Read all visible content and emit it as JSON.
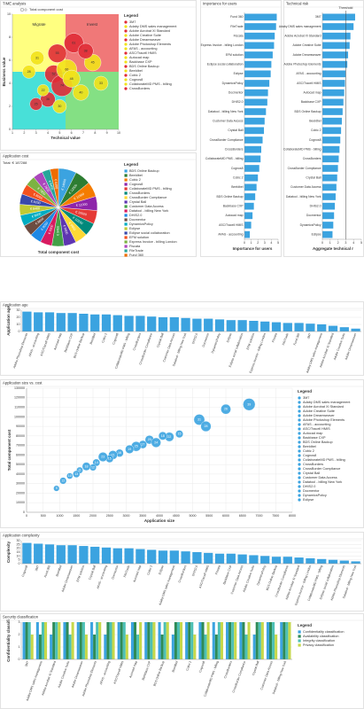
{
  "chart_data": [
    {
      "type": "bubble",
      "title": "TIME analysis",
      "size_legend": "Total component cost",
      "legend_title": "Legend",
      "xlabel": "Technical value",
      "ylabel": "Business value",
      "quadrant_colors": [
        "#ffff80",
        "#f07878",
        "#48e0d8",
        "#84e084"
      ],
      "annotations": [
        "Migrate",
        "Invest"
      ],
      "categories": [
        "3M7",
        "Adaby DMS sales management",
        "Adobe Acrobat XI Standard",
        "Adobe Creative Suite",
        "Adobe Dreamweaver",
        "Adobe Photoshop Elements",
        "AFAS - accounting",
        "ASC/Tracell HMIS",
        "Autocad map",
        "Backbase CXP",
        "BDS Online Backup",
        "Beeldbel",
        "Cobic 2",
        "Cognos8",
        "CollaborateMD PMS - billing",
        "CrossBorders"
      ],
      "x": [
        6.2,
        3.1,
        4.5,
        7.8,
        5.2,
        2.4,
        6.8,
        4.0,
        5.6,
        3.6,
        7.2,
        5.0,
        4.8,
        6.0,
        8.5,
        3.0
      ],
      "values": [
        7.5,
        6.2,
        4.8,
        5.8,
        3.8,
        5.0,
        3.2,
        2.6,
        5.2,
        3.4,
        6.8,
        2.0,
        6.6,
        4.4,
        4.0,
        2.2
      ],
      "sizes": [
        61,
        31,
        52,
        45,
        74,
        28,
        40,
        36,
        66,
        22,
        38,
        30,
        55,
        48,
        33,
        25
      ],
      "colors": [
        "#e02c36",
        "#f2e21a",
        "#e02c36",
        "#f2e21a",
        "#e02c36",
        "#f2e21a",
        "#f2e21a",
        "#e02c36",
        "#f2e21a",
        "#f2e21a",
        "#e02c36",
        "#f2e21a",
        "#e02c36",
        "#f2e21a",
        "#f2e21a",
        "#e02c36"
      ],
      "xlim": [
        1,
        10
      ],
      "xticks": [
        1,
        2,
        3,
        4,
        5,
        6,
        7,
        8,
        9,
        10
      ],
      "ylim": [
        0,
        10
      ],
      "yticks": [
        0,
        2,
        4,
        6,
        8,
        10
      ]
    },
    {
      "type": "pie",
      "title": "Application cost",
      "subtitle": "Total: € 187288",
      "xlabel": "Total component cost",
      "legend_title": "Legend",
      "categories": [
        "BDS Online Backup",
        "Beeldbel",
        "Cobic 2",
        "Cognos8",
        "CollaborateMD PMS - billing",
        "CrossBorders",
        "CrossBorder Compliance",
        "Crystal Ball",
        "Customer Data Access",
        "Datatool - billing New York",
        "DHIS2.0",
        "Docmentor",
        "DynamicsPolicy",
        "Eclipse",
        "Eclipse social collaboration",
        "EFM solution",
        "Express Invoice - billing London",
        "Fiscata",
        "FileTrade",
        "Fund 360"
      ],
      "values": [
        14000,
        12500,
        11800,
        11000,
        10500,
        10200,
        9800,
        9600,
        9400,
        9200,
        9000,
        8800,
        8600,
        8400,
        8200,
        8000,
        7800,
        7600,
        6400,
        6488
      ],
      "value_labels": [
        "€ 14000",
        "€ 12500",
        "€ 11800",
        "€ 11000",
        "€ 10500",
        "€ 10200",
        "€ 9800",
        "€ 9600",
        "€ 9400",
        "€ 9200",
        "€ 9000",
        "€ 8800",
        "€ 8600",
        "€ 8400",
        "€ 8200",
        "€ 8000",
        "€ 7800",
        "€ 7600",
        "€ 6400",
        "€ 6488"
      ],
      "colors": [
        "#3ba3e0",
        "#2e7d32",
        "#f57c00",
        "#8e24aa",
        "#e53935",
        "#00897b",
        "#fdd835",
        "#5e35b1",
        "#43a047",
        "#d81b60",
        "#1e88e5",
        "#6d4c41",
        "#00acc1",
        "#c0ca33",
        "#3949ab",
        "#f4511e",
        "#7cb342",
        "#ab47bc",
        "#26a69a",
        "#ef6c00"
      ]
    },
    {
      "type": "bar",
      "horizontal": true,
      "title": "Importance for users",
      "xlabel": "Importance for users",
      "color": "#3ba3e0",
      "categories": [
        "Fund 360",
        "FileTrade",
        "Fiscata",
        "Express Invoice - billing London",
        "EFM solution",
        "Eclipse social collaboration",
        "Eclipse",
        "DynamicsPolicy",
        "Docmentor",
        "DHIS2.0",
        "Datatool - billing New York",
        "Customer Data Access",
        "Crystal Ball",
        "CrossBorder Compliance",
        "CrossBorders",
        "CollaborateMD PMS - billing",
        "Cognos8",
        "Cobic 2",
        "Beeldbel",
        "BDS Online Backup",
        "Backbase CXP",
        "Autocad map",
        "ASC/Tracell HMIS",
        "AFAS - accounting"
      ],
      "values": [
        4.8,
        4.7,
        4.5,
        4.4,
        4.2,
        4.0,
        3.9,
        3.7,
        3.5,
        3.4,
        3.2,
        3.0,
        2.9,
        2.7,
        2.5,
        2.4,
        2.2,
        2.0,
        1.8,
        1.6,
        1.4,
        1.2,
        1.0,
        0.8
      ],
      "xlim": [
        0,
        5
      ],
      "xticks": [
        0,
        1,
        2,
        3,
        4,
        5
      ]
    },
    {
      "type": "bar",
      "horizontal": true,
      "title": "Technical risk",
      "xlabel": "Aggregate technical r",
      "color": "#3ba3e0",
      "threshold": {
        "value": 3,
        "label": "Threshold"
      },
      "categories": [
        "3M7",
        "Adaby DMS sales management",
        "Adobe Acrobat XI Standard",
        "Adobe Creative Suite",
        "Adobe Dreamweaver",
        "Adobe Photoshop Elements",
        "AFAS - accounting",
        "ASC/Tracell HMIS",
        "Autocad map",
        "Backbase CXP",
        "BDS Online Backup",
        "Beeldbel",
        "Cobic 2",
        "Cognos8",
        "CollaborateMD PMS - billing",
        "CrossBorders",
        "CrossBorder Compliance",
        "Crystal Ball",
        "Customer Data Access",
        "Datatool - billing New York",
        "DHIS2.0",
        "Docmentor",
        "DynamicsPolicy",
        "Eclipse"
      ],
      "values": [
        4.2,
        4.0,
        3.6,
        3.5,
        3.3,
        3.2,
        3.0,
        2.9,
        2.8,
        2.7,
        2.6,
        2.5,
        2.4,
        2.3,
        2.2,
        2.1,
        2.0,
        1.9,
        1.8,
        1.7,
        1.6,
        1.5,
        1.4,
        1.3
      ],
      "xlim": [
        0,
        5
      ],
      "xticks": [
        0,
        1,
        2,
        3,
        4,
        5
      ]
    },
    {
      "type": "bar",
      "title": "Application age",
      "ylabel": "Application age",
      "color": "#3ba3e0",
      "grid": true,
      "categories": [
        "Adobe Photoshop Elements",
        "AFAS - accounting",
        "ASC/Tracell HMIS",
        "Autocad map",
        "Backbase CXP",
        "BDS Online Backup",
        "Beeldbel",
        "Cobic 2",
        "Cognos8",
        "CollaborateMD PMS - billing",
        "CrossBorders",
        "CrossBorder Compliance",
        "Crystal Ball",
        "Customer Data Access",
        "Datatool - billing New York",
        "DHIS2.0",
        "Docmentor",
        "DynamicsPolicy",
        "Eclipse",
        "Eclipse social collaboration",
        "EFM solution",
        "Express Invoice - billing London",
        "Fiscata",
        "FileTrade",
        "Fund 360",
        "3M7",
        "Adaby DMS sales management",
        "Adobe Acrobat XI Standard",
        "Adobe Creative Suite",
        "Adobe Dreamweaver"
      ],
      "values": [
        28,
        27,
        27,
        26,
        26,
        25,
        24,
        24,
        23,
        22,
        22,
        21,
        20,
        20,
        19,
        18,
        18,
        17,
        16,
        16,
        15,
        14,
        13,
        12,
        12,
        11,
        10,
        8,
        6,
        4
      ],
      "ylim": [
        0,
        30
      ],
      "yticks": [
        0,
        10,
        20,
        30
      ]
    },
    {
      "type": "scatter",
      "title": "Application size vs. cost",
      "xlabel": "Application size",
      "ylabel": "Total component cost",
      "legend_title": "Legend",
      "color": "#3ba3e0",
      "grid": true,
      "categories": [
        "3M7",
        "Adaby DMS sales management",
        "Adobe Acrobat XI Standard",
        "Adobe Creative Suite",
        "Adobe Dreamweaver",
        "Adobe Photoshop Elements",
        "AFAS - accounting",
        "ASC/Tracell HMIS",
        "Autocad map",
        "Backbase CXP",
        "BDS Online Backup",
        "Beeldbel",
        "Cobic 2",
        "Cognos8",
        "CollaborateMD PMS - billing",
        "CrossBorders",
        "CrossBorder Compliance",
        "Crystal Ball",
        "Customer Data Access",
        "Datatool - billing New York",
        "DHIS2.0",
        "Docmentor",
        "DynamicsPolicy",
        "Eclipse"
      ],
      "x": [
        6700,
        6000,
        5200,
        5400,
        4300,
        4100,
        3700,
        3500,
        3300,
        3100,
        2800,
        2600,
        2500,
        2300,
        2100,
        2000,
        1800,
        1600,
        1500,
        1300,
        1100,
        900,
        3900,
        4600
      ],
      "values": [
        113000,
        108000,
        97000,
        90000,
        79000,
        80000,
        76000,
        71000,
        69000,
        66000,
        62000,
        60000,
        56000,
        58000,
        52000,
        47000,
        48000,
        44000,
        40000,
        38000,
        33000,
        25000,
        73000,
        82000
      ],
      "sizes": [
        39,
        26,
        31,
        28,
        22,
        18,
        20,
        17,
        25,
        19,
        16,
        21,
        15,
        23,
        14,
        12,
        18,
        11,
        13,
        10,
        12,
        9,
        24,
        15
      ],
      "xlim": [
        0,
        8000
      ],
      "xticks": [
        0,
        500,
        1000,
        1500,
        2000,
        2500,
        3000,
        3500,
        4000,
        4500,
        5000,
        5500,
        6000,
        6500,
        7000,
        7500,
        8000
      ],
      "ylim": [
        0,
        130000
      ],
      "yticks": [
        0,
        10000,
        20000,
        30000,
        40000,
        50000,
        60000,
        70000,
        80000,
        90000,
        100000,
        110000,
        120000,
        130000
      ]
    },
    {
      "type": "bar",
      "title": "Application complexity",
      "ylabel": "Complexity",
      "color": "#3ba3e0",
      "grid": true,
      "categories": [
        "Cognos8",
        "3M7",
        "Fund 360",
        "Beeldbel",
        "Adobe Dreamweaver",
        "EFM solution",
        "Crystal Ball",
        "AFAS - accounting",
        "Docmentor",
        "FileTrade",
        "Autocad map",
        "Cobic 2",
        "Eclipse",
        "Adaby DMS sales management",
        "CrossBorders",
        "DHIS2.0",
        "ASC/Tracell HMIS",
        "Fiscata",
        "Backbase CXP",
        "Customer Data Access",
        "Adobe Creative Suite",
        "DynamicsPolicy",
        "BDS Online Backup",
        "CrossBorder Compliance",
        "Adobe Acrobat XI Standard",
        "Express Invoice - billing London",
        "CollaborateMD PMS - billing",
        "Eclipse social collaboration",
        "Adobe Photoshop Elements",
        "Datatool - billing New York"
      ],
      "values": [
        27,
        26,
        25,
        24,
        24,
        23,
        22,
        21,
        20,
        20,
        19,
        18,
        17,
        17,
        16,
        15,
        14,
        13,
        13,
        12,
        11,
        10,
        9,
        9,
        8,
        7,
        6,
        5,
        4,
        3
      ],
      "ylim": [
        0,
        30
      ],
      "yticks": [
        0,
        5,
        10,
        15,
        20,
        25,
        30
      ]
    },
    {
      "type": "bar",
      "title": "Security classification",
      "ylabel": "Confidentiality classifi",
      "legend_title": "Legend",
      "grid": true,
      "categories": [
        "3M7",
        "Adaby DMS sales management",
        "Adobe Acrobat XI Standard",
        "Adobe Creative Suite",
        "Adobe Dreamweaver",
        "Adobe Photoshop Elements",
        "AFAS - accounting",
        "ASC/Tracell HMIS",
        "Autocad map",
        "Backbase CXP",
        "BDS Online Backup",
        "Beeldbel",
        "Cobic 2",
        "Cognos8",
        "CollaborateMD PMS - billing",
        "CrossBorders",
        "CrossBorder Compliance",
        "Crystal Ball",
        "Customer Data Access",
        "Datatool - billing New York"
      ],
      "series": [
        {
          "name": "Confidentiality classification",
          "color": "#3ba3e0",
          "values": [
            3,
            3,
            2,
            3,
            3,
            3,
            2,
            3,
            3,
            3,
            3,
            2,
            3,
            3,
            3,
            3,
            3,
            2,
            3,
            3
          ]
        },
        {
          "name": "Availability classification",
          "color": "#2e8b57",
          "values": [
            3,
            2,
            3,
            3,
            3,
            2,
            3,
            3,
            3,
            3,
            2,
            3,
            3,
            3,
            2,
            3,
            3,
            3,
            3,
            3
          ]
        },
        {
          "name": "Integrity classification",
          "color": "#4dc0b5",
          "values": [
            3,
            3,
            3,
            2,
            3,
            3,
            3,
            3,
            2,
            3,
            3,
            3,
            3,
            2,
            3,
            3,
            2,
            3,
            3,
            3
          ]
        },
        {
          "name": "Privacy classification",
          "color": "#c6d84a",
          "values": [
            2,
            3,
            3,
            3,
            2,
            3,
            3,
            2,
            3,
            3,
            3,
            3,
            2,
            3,
            3,
            3,
            3,
            3,
            2,
            3
          ]
        }
      ],
      "ylim": [
        0,
        3
      ],
      "yticks": [
        0,
        1,
        2,
        3
      ]
    }
  ]
}
